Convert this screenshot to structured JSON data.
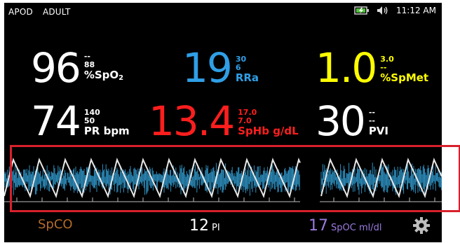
{
  "status": {
    "mode": "APOD",
    "patient": "ADULT",
    "time": "11:12 AM",
    "battery_icon": "battery-charging-icon",
    "speaker_icon": "speaker-icon"
  },
  "spo2": {
    "value": "96",
    "upper": "--",
    "lower": "88",
    "unit_main": "%SpO",
    "unit_sub": "2"
  },
  "rra": {
    "value": "19",
    "upper": "30",
    "lower": "6",
    "unit": "RRa"
  },
  "spmet": {
    "value": "1.0",
    "upper": "3.0",
    "lower": "--",
    "unit": "%SpMet"
  },
  "pr": {
    "value": "74",
    "upper": "140",
    "lower": "50",
    "unit": "PR bpm"
  },
  "sphb": {
    "value": "13.4",
    "upper": "17.0",
    "lower": "7.0",
    "unit": "SpHb g/dL"
  },
  "pvi": {
    "value": "30",
    "upper": "--",
    "lower": "--",
    "unit": "PVI"
  },
  "bottom": {
    "spco": {
      "label": "SpCO"
    },
    "pi": {
      "value": "12",
      "label": "PI"
    },
    "spoc": {
      "value": "17",
      "label": "SpOC ml/dl"
    },
    "settings_icon": "gear-icon"
  },
  "colors": {
    "white": "#ffffff",
    "blue": "#2f9fe6",
    "yellow": "#ffff00",
    "red": "#ff1e1e",
    "spco": "#b36b2a",
    "spoc": "#9b7be0",
    "pleth": "#2e8fbf"
  }
}
